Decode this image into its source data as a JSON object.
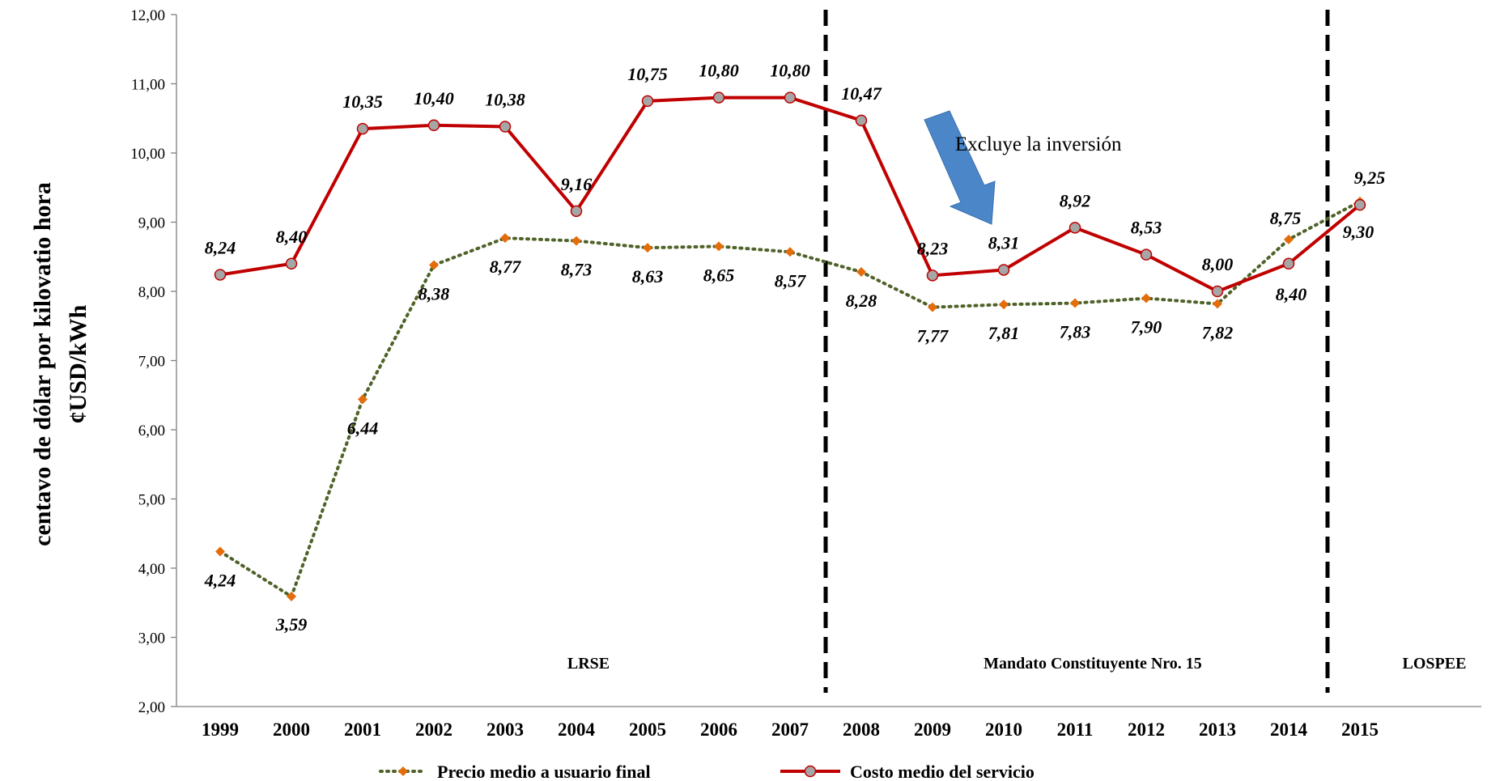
{
  "chart_data": {
    "type": "line",
    "x": [
      "1999",
      "2000",
      "2001",
      "2002",
      "2003",
      "2004",
      "2005",
      "2006",
      "2007",
      "2008",
      "2009",
      "2010",
      "2011",
      "2012",
      "2013",
      "2014",
      "2015"
    ],
    "ylabel_line1": "centavo de dólar por kilovatio hora",
    "ylabel_line2": "¢USD/kWh",
    "ylim": [
      2,
      12
    ],
    "yticks": [
      "2,00",
      "3,00",
      "4,00",
      "5,00",
      "6,00",
      "7,00",
      "8,00",
      "9,00",
      "10,00",
      "11,00",
      "12,00"
    ],
    "grid": false,
    "legend_position": "bottom",
    "series": [
      {
        "name": "Precio medio a usuario final",
        "style": "dotted",
        "color": "#4f6228",
        "marker_color": "#e46c0a",
        "values": [
          4.24,
          3.59,
          6.44,
          8.38,
          8.77,
          8.73,
          8.63,
          8.65,
          8.57,
          8.28,
          7.77,
          7.81,
          7.83,
          7.9,
          7.82,
          8.75,
          9.3
        ],
        "labels": [
          "4,24",
          "3,59",
          "6,44",
          "8,38",
          "8,77",
          "8,73",
          "8,63",
          "8,65",
          "8,57",
          "8,28",
          "7,77",
          "7,81",
          "7,83",
          "7,90",
          "7,82",
          "8,75",
          "9,30"
        ]
      },
      {
        "name": "Costo medio del servicio",
        "style": "solid",
        "color": "#c00000",
        "marker_color": "#a6a6a6",
        "values": [
          8.24,
          8.4,
          10.35,
          10.4,
          10.38,
          9.16,
          10.75,
          10.8,
          10.8,
          10.47,
          8.23,
          8.31,
          8.92,
          8.53,
          8.0,
          8.4,
          9.25
        ],
        "labels": [
          "8,24",
          "8,40",
          "10,35",
          "10,40",
          "10,38",
          "9,16",
          "10,75",
          "10,80",
          "10,80",
          "10,47",
          "8,23",
          "8,31",
          "8,92",
          "8,53",
          "8,00",
          "8,40",
          "9,25"
        ]
      }
    ],
    "dividers_after": [
      "2007",
      "2014"
    ],
    "regions": [
      "LRSE",
      "Mandato Constituyente Nro. 15",
      "LOSPEE"
    ],
    "annotation": {
      "text": "Excluye la inversión",
      "arrow_color": "#4a86c8"
    }
  }
}
